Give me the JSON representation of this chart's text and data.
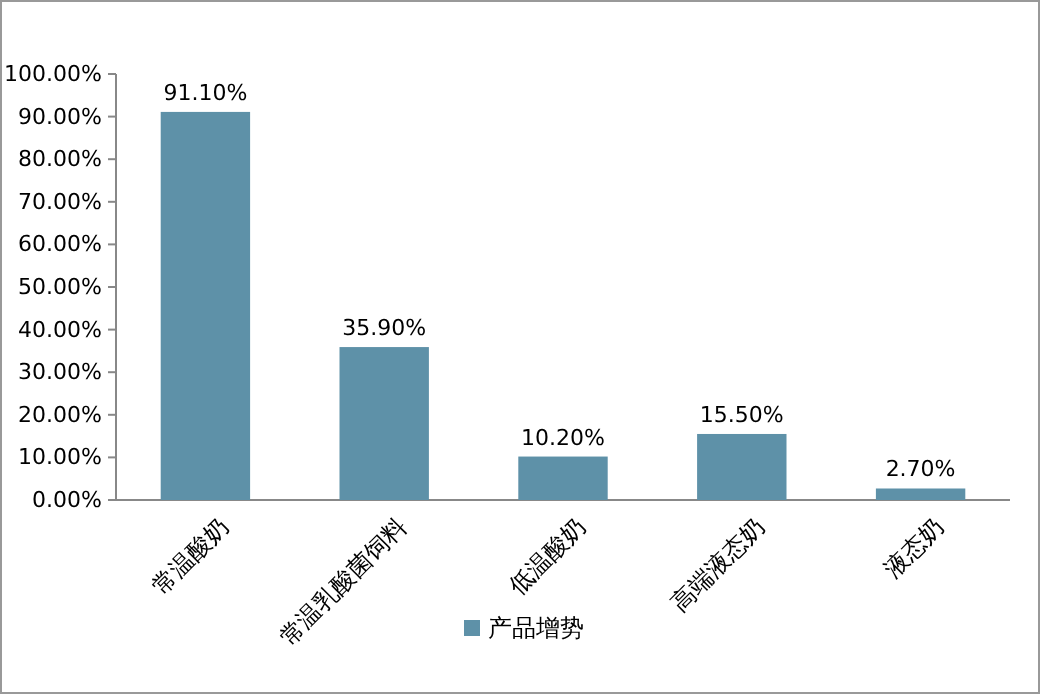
{
  "chart_data": {
    "type": "bar",
    "categories": [
      "常温酸奶",
      "常温乳酸菌饲料",
      "低温酸奶",
      "高端液态奶",
      "液态奶"
    ],
    "series": [
      {
        "name": "产品增势",
        "color": "#5e91a8",
        "values": [
          91.1,
          35.9,
          10.2,
          15.5,
          2.7
        ],
        "value_labels": [
          "91.10%",
          "35.90%",
          "10.20%",
          "15.50%",
          "2.70%"
        ]
      }
    ],
    "ylim": [
      0,
      100
    ],
    "yticks": [
      {
        "value": 0,
        "label": "0.00%"
      },
      {
        "value": 10,
        "label": "10.00%"
      },
      {
        "value": 20,
        "label": "20.00%"
      },
      {
        "value": 30,
        "label": "30.00%"
      },
      {
        "value": 40,
        "label": "40.00%"
      },
      {
        "value": 50,
        "label": "50.00%"
      },
      {
        "value": 60,
        "label": "60.00%"
      },
      {
        "value": 70,
        "label": "70.00%"
      },
      {
        "value": 80,
        "label": "80.00%"
      },
      {
        "value": 90,
        "label": "90.00%"
      },
      {
        "value": 100,
        "label": "100.00%"
      }
    ],
    "grid": false,
    "legend": "bottom"
  }
}
